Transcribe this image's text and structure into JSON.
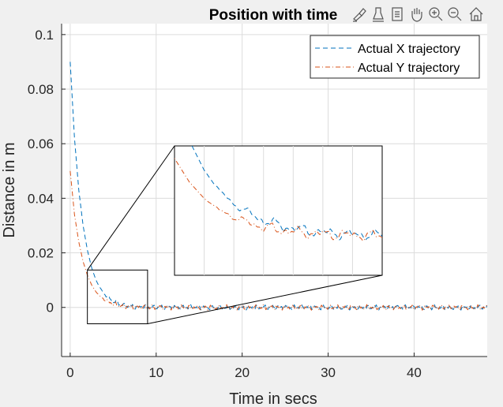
{
  "chart_data": {
    "type": "line",
    "title": "Position with time",
    "xlabel": "Time in secs",
    "ylabel": "Distance in m",
    "xlim": [
      -1,
      48.5
    ],
    "ylim": [
      -0.018,
      0.104
    ],
    "xticks": [
      0,
      10,
      20,
      30,
      40
    ],
    "xtick_labels": [
      "0",
      "10",
      "20",
      "30",
      "40"
    ],
    "yticks": [
      0,
      0.02,
      0.04,
      0.06,
      0.08,
      0.1
    ],
    "ytick_labels": [
      "0",
      "0.02",
      "0.04",
      "0.06",
      "0.08",
      "0.1"
    ],
    "grid": true,
    "legend_position": "top-right",
    "series": [
      {
        "name": "Actual X trajectory",
        "color": "#0072BD",
        "style": "dashed",
        "x": [
          0,
          0.5,
          1,
          1.5,
          2,
          2.5,
          3,
          3.5,
          4,
          5,
          6,
          7,
          8,
          10,
          15,
          20,
          25,
          30,
          35,
          40,
          45,
          48.5
        ],
        "y": [
          0.09,
          0.062,
          0.043,
          0.03,
          0.021,
          0.0145,
          0.01,
          0.007,
          0.0048,
          0.0023,
          0.0011,
          0.0005,
          0.0002,
          0.0,
          0.0,
          0.0,
          0.0,
          0.0,
          0.0,
          0.0,
          0.0,
          0.0
        ]
      },
      {
        "name": "Actual Y trajectory",
        "color": "#D95319",
        "style": "dashdot",
        "x": [
          0,
          0.5,
          1,
          1.5,
          2,
          2.5,
          3,
          3.5,
          4,
          5,
          6,
          7,
          8,
          10,
          15,
          20,
          25,
          30,
          35,
          40,
          45,
          48.5
        ],
        "y": [
          0.05,
          0.034,
          0.024,
          0.0168,
          0.0118,
          0.0082,
          0.0057,
          0.004,
          0.0028,
          0.0013,
          0.0006,
          0.0003,
          0.0001,
          0.0,
          0.0,
          0.0,
          0.0,
          0.0,
          0.0,
          0.0,
          0.0,
          0.0
        ]
      }
    ],
    "zoom_region": {
      "x": [
        2,
        9
      ],
      "y": [
        -0.006,
        0.0137
      ]
    }
  },
  "toolbar": {
    "icons": [
      "brush-icon",
      "data-tips-icon",
      "export-icon",
      "pan-icon",
      "zoom-in-icon",
      "zoom-out-icon",
      "home-icon"
    ]
  }
}
